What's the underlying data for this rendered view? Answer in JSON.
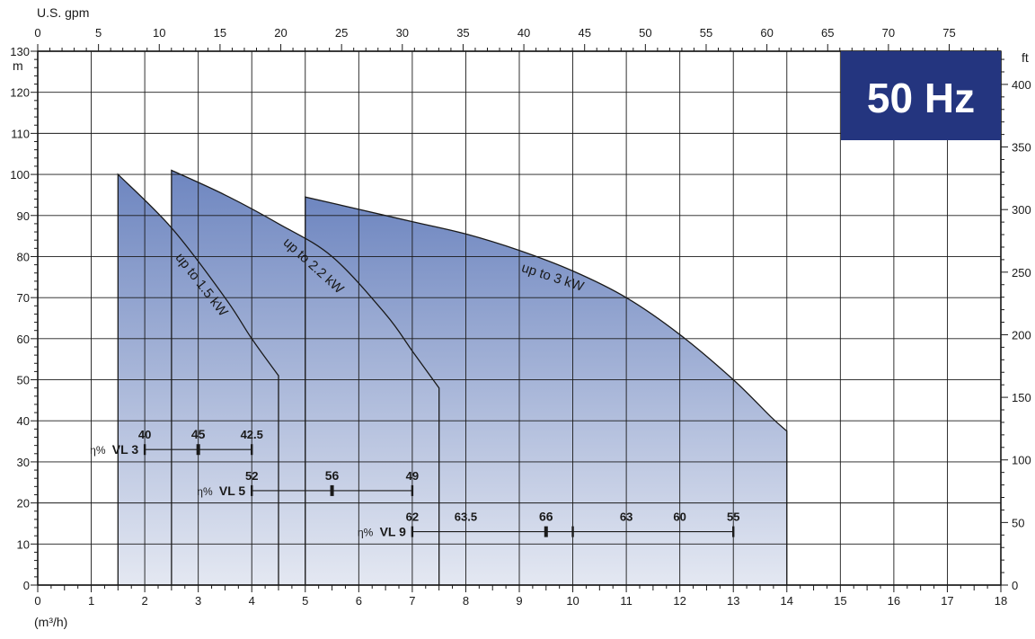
{
  "chart_data": {
    "type": "area",
    "frequency_badge": "50 Hz",
    "colors": {
      "fill_top": "#6e86c0",
      "fill_bottom": "#e4e8f2",
      "badge_bg": "#24357f",
      "badge_text": "#ffffff",
      "grid": "#1a1a1a"
    },
    "x_bottom": {
      "unit_label": "(m³/h)",
      "range": [
        0,
        18
      ],
      "ticks": [
        "0",
        "1",
        "2",
        "3",
        "4",
        "5",
        "6",
        "7",
        "8",
        "9",
        "10",
        "11",
        "12",
        "13",
        "14",
        "15",
        "16",
        "17",
        "18"
      ]
    },
    "x_top": {
      "unit_label": "U.S. gpm",
      "range": [
        0,
        79.25
      ],
      "ticks": [
        "0",
        "5",
        "10",
        "15",
        "20",
        "25",
        "30",
        "35",
        "40",
        "45",
        "50",
        "55",
        "60",
        "65",
        "70",
        "75"
      ]
    },
    "y_left": {
      "unit_label": "m",
      "range": [
        0,
        130
      ],
      "ticks": [
        "0",
        "10",
        "20",
        "30",
        "40",
        "50",
        "60",
        "70",
        "80",
        "90",
        "100",
        "110",
        "120",
        "130"
      ]
    },
    "y_right": {
      "unit_label": "ft",
      "range": [
        0,
        426.5
      ],
      "ticks": [
        "0",
        "50",
        "100",
        "150",
        "200",
        "250",
        "300",
        "350",
        "400"
      ]
    },
    "grid": true,
    "series": [
      {
        "name": "up to 1.5 kW",
        "points": [
          [
            1.5,
            100
          ],
          [
            2.5,
            87
          ],
          [
            3.5,
            70
          ],
          [
            4.0,
            60
          ],
          [
            4.5,
            51
          ]
        ],
        "label_pos": [
          3.0,
          72.5
        ],
        "label_angle": 52
      },
      {
        "name": "up to 2.2 kW",
        "points": [
          [
            2.5,
            101
          ],
          [
            3.5,
            95
          ],
          [
            4.5,
            88
          ],
          [
            5.5,
            80
          ],
          [
            6.5,
            66
          ],
          [
            7.0,
            57
          ],
          [
            7.5,
            48
          ]
        ],
        "label_pos": [
          5.1,
          77
        ],
        "label_angle": 42
      },
      {
        "name": "up to 3 kW",
        "points": [
          [
            5.0,
            94.5
          ],
          [
            6.0,
            91.5
          ],
          [
            7.0,
            88.5
          ],
          [
            8.0,
            85.5
          ],
          [
            9.0,
            81.5
          ],
          [
            10.0,
            76.5
          ],
          [
            11.0,
            70
          ],
          [
            12.0,
            61
          ],
          [
            13.0,
            50
          ],
          [
            13.7,
            41
          ],
          [
            14.0,
            37.5
          ]
        ],
        "label_pos": [
          9.6,
          74
        ],
        "label_angle": 18
      }
    ],
    "efficiency_bars": [
      {
        "prefix": "η%",
        "name": "VL 3",
        "y": 33,
        "x_range": [
          2,
          4
        ],
        "marks": [
          {
            "x": 2,
            "value": "40",
            "major": false
          },
          {
            "x": 3,
            "value": "45",
            "major": true
          },
          {
            "x": 4,
            "value": "42.5",
            "major": false
          }
        ]
      },
      {
        "prefix": "η%",
        "name": "VL 5",
        "y": 23,
        "x_range": [
          4,
          7
        ],
        "marks": [
          {
            "x": 4,
            "value": "52",
            "major": false
          },
          {
            "x": 5.5,
            "value": "56",
            "major": true
          },
          {
            "x": 7,
            "value": "49",
            "major": false
          }
        ]
      },
      {
        "prefix": "η%",
        "name": "VL 9",
        "y": 13,
        "x_range": [
          7,
          13
        ],
        "marks": [
          {
            "x": 7,
            "value": "62",
            "major": false
          },
          {
            "x": 8,
            "value": "63.5",
            "major": false,
            "tick": false
          },
          {
            "x": 9.5,
            "value": "66",
            "major": true
          },
          {
            "x": 10,
            "value": "",
            "major": false
          },
          {
            "x": 11,
            "value": "63",
            "major": false,
            "tick": false
          },
          {
            "x": 12,
            "value": "60",
            "major": false,
            "tick": false
          },
          {
            "x": 13,
            "value": "55",
            "major": false
          }
        ]
      }
    ]
  }
}
